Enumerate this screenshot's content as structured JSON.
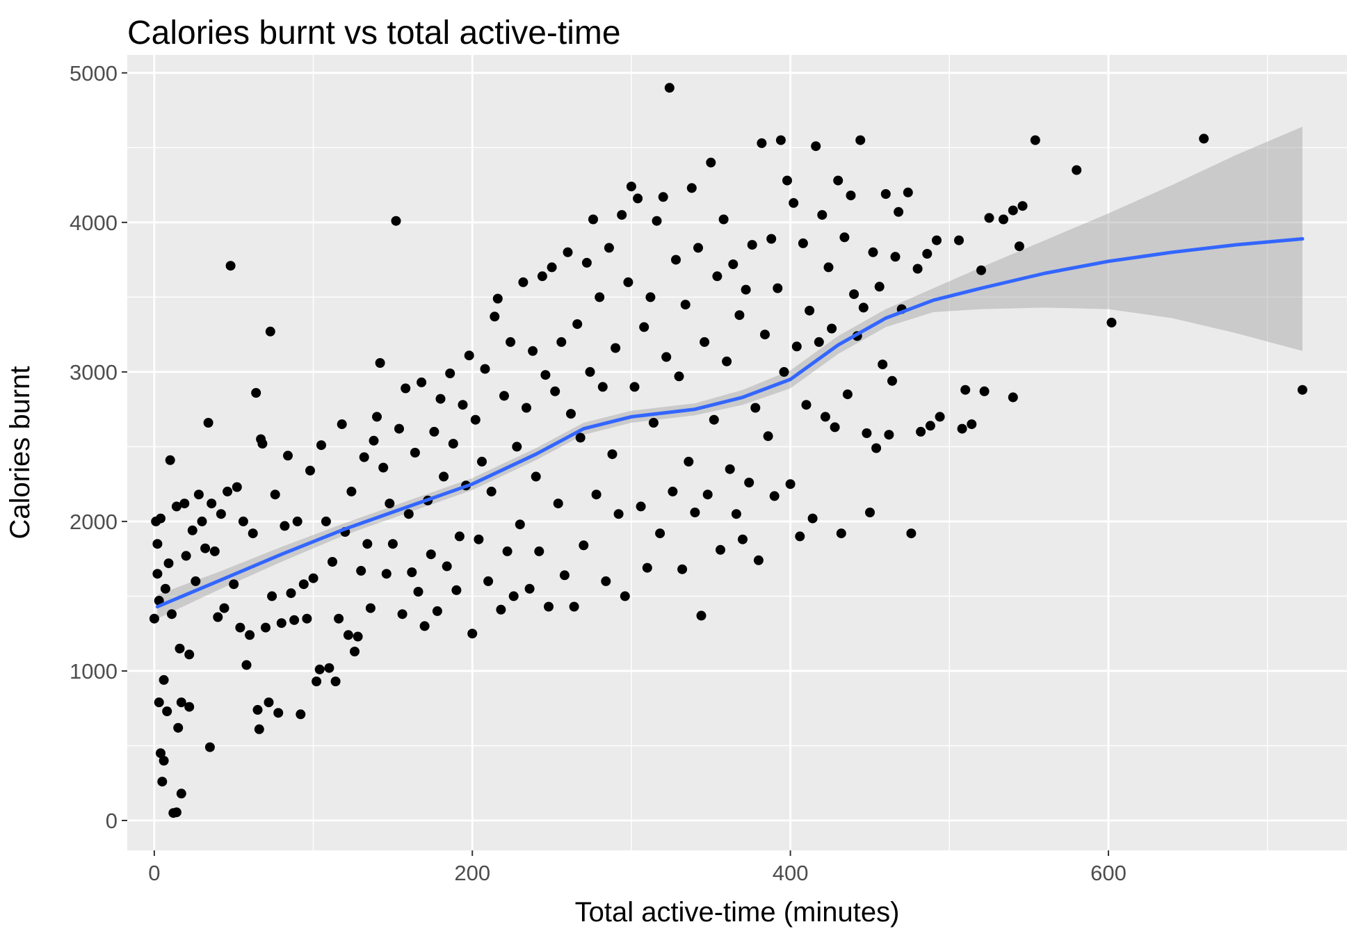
{
  "chart_data": {
    "type": "scatter",
    "title": "Calories burnt vs total active-time",
    "xlabel": "Total active-time (minutes)",
    "ylabel": "Calories burnt",
    "xlim": [
      -17,
      750
    ],
    "ylim": [
      -200,
      5120
    ],
    "x_ticks": [
      0,
      200,
      400,
      600
    ],
    "x_minor_ticks": [
      100,
      300,
      500,
      700
    ],
    "y_ticks": [
      0,
      1000,
      2000,
      3000,
      4000,
      5000
    ],
    "y_minor_ticks": [
      500,
      1500,
      2500,
      3500,
      4500
    ],
    "grid": true,
    "legend": "none",
    "colors": {
      "panel_background": "#ebebeb",
      "grid": "#ffffff",
      "points": "#000000",
      "smooth_line": "#3366ff",
      "confidence_band": "#999999"
    },
    "sample_points": [
      [
        0,
        1350
      ],
      [
        1,
        2000
      ],
      [
        2,
        1650
      ],
      [
        2,
        1850
      ],
      [
        3,
        1470
      ],
      [
        4,
        2020
      ],
      [
        3,
        790
      ],
      [
        4,
        450
      ],
      [
        5,
        260
      ],
      [
        6,
        400
      ],
      [
        6,
        940
      ],
      [
        7,
        1550
      ],
      [
        8,
        730
      ],
      [
        9,
        1720
      ],
      [
        10,
        2410
      ],
      [
        11,
        1380
      ],
      [
        12,
        50
      ],
      [
        14,
        55
      ],
      [
        14,
        2100
      ],
      [
        15,
        620
      ],
      [
        16,
        1150
      ],
      [
        17,
        790
      ],
      [
        17,
        180
      ],
      [
        19,
        2120
      ],
      [
        20,
        1770
      ],
      [
        22,
        760
      ],
      [
        22,
        1110
      ],
      [
        24,
        1940
      ],
      [
        26,
        1600
      ],
      [
        28,
        2180
      ],
      [
        30,
        2000
      ],
      [
        32,
        1820
      ],
      [
        34,
        2660
      ],
      [
        35,
        490
      ],
      [
        36,
        2120
      ],
      [
        38,
        1800
      ],
      [
        40,
        1360
      ],
      [
        42,
        2050
      ],
      [
        44,
        1420
      ],
      [
        46,
        2200
      ],
      [
        48,
        3710
      ],
      [
        50,
        1580
      ],
      [
        52,
        2230
      ],
      [
        54,
        1290
      ],
      [
        56,
        2000
      ],
      [
        58,
        1040
      ],
      [
        60,
        1240
      ],
      [
        62,
        1920
      ],
      [
        64,
        2860
      ],
      [
        65,
        740
      ],
      [
        66,
        610
      ],
      [
        67,
        2550
      ],
      [
        68,
        2520
      ],
      [
        70,
        1290
      ],
      [
        72,
        790
      ],
      [
        73,
        3270
      ],
      [
        74,
        1500
      ],
      [
        76,
        2180
      ],
      [
        78,
        720
      ],
      [
        80,
        1320
      ],
      [
        82,
        1970
      ],
      [
        84,
        2440
      ],
      [
        86,
        1520
      ],
      [
        88,
        1340
      ],
      [
        90,
        2000
      ],
      [
        92,
        710
      ],
      [
        94,
        1580
      ],
      [
        96,
        1350
      ],
      [
        98,
        2340
      ],
      [
        100,
        1620
      ],
      [
        102,
        930
      ],
      [
        104,
        1010
      ],
      [
        105,
        2510
      ],
      [
        108,
        2000
      ],
      [
        110,
        1020
      ],
      [
        112,
        1730
      ],
      [
        114,
        930
      ],
      [
        116,
        1350
      ],
      [
        118,
        2650
      ],
      [
        120,
        1930
      ],
      [
        122,
        1240
      ],
      [
        124,
        2200
      ],
      [
        126,
        1130
      ],
      [
        128,
        1230
      ],
      [
        130,
        1670
      ],
      [
        132,
        2430
      ],
      [
        134,
        1850
      ],
      [
        136,
        1420
      ],
      [
        138,
        2540
      ],
      [
        140,
        2700
      ],
      [
        142,
        3060
      ],
      [
        144,
        2360
      ],
      [
        146,
        1650
      ],
      [
        148,
        2120
      ],
      [
        150,
        1850
      ],
      [
        152,
        4010
      ],
      [
        154,
        2620
      ],
      [
        156,
        1380
      ],
      [
        158,
        2890
      ],
      [
        160,
        2050
      ],
      [
        162,
        1660
      ],
      [
        164,
        2460
      ],
      [
        166,
        1530
      ],
      [
        168,
        2930
      ],
      [
        170,
        1300
      ],
      [
        172,
        2140
      ],
      [
        174,
        1780
      ],
      [
        176,
        2600
      ],
      [
        178,
        1400
      ],
      [
        180,
        2820
      ],
      [
        182,
        2300
      ],
      [
        184,
        1700
      ],
      [
        186,
        2990
      ],
      [
        188,
        2520
      ],
      [
        190,
        1540
      ],
      [
        192,
        1900
      ],
      [
        194,
        2780
      ],
      [
        196,
        2240
      ],
      [
        198,
        3110
      ],
      [
        200,
        1250
      ],
      [
        202,
        2680
      ],
      [
        204,
        1880
      ],
      [
        206,
        2400
      ],
      [
        208,
        3020
      ],
      [
        210,
        1600
      ],
      [
        212,
        2200
      ],
      [
        214,
        3370
      ],
      [
        216,
        3490
      ],
      [
        218,
        1410
      ],
      [
        220,
        2840
      ],
      [
        222,
        1800
      ],
      [
        224,
        3200
      ],
      [
        226,
        1500
      ],
      [
        228,
        2500
      ],
      [
        230,
        1980
      ],
      [
        232,
        3600
      ],
      [
        234,
        2760
      ],
      [
        236,
        1550
      ],
      [
        238,
        3140
      ],
      [
        240,
        2300
      ],
      [
        242,
        1800
      ],
      [
        244,
        3640
      ],
      [
        246,
        2980
      ],
      [
        248,
        1430
      ],
      [
        250,
        3700
      ],
      [
        252,
        2870
      ],
      [
        254,
        2120
      ],
      [
        256,
        3200
      ],
      [
        258,
        1640
      ],
      [
        260,
        3800
      ],
      [
        262,
        2720
      ],
      [
        264,
        1430
      ],
      [
        266,
        3320
      ],
      [
        268,
        2560
      ],
      [
        270,
        1840
      ],
      [
        272,
        3730
      ],
      [
        274,
        3000
      ],
      [
        276,
        4020
      ],
      [
        278,
        2180
      ],
      [
        280,
        3500
      ],
      [
        282,
        2900
      ],
      [
        284,
        1600
      ],
      [
        286,
        3830
      ],
      [
        288,
        2450
      ],
      [
        290,
        3160
      ],
      [
        292,
        2050
      ],
      [
        294,
        4050
      ],
      [
        296,
        1500
      ],
      [
        298,
        3600
      ],
      [
        300,
        4240
      ],
      [
        302,
        2900
      ],
      [
        304,
        4160
      ],
      [
        306,
        2100
      ],
      [
        308,
        3300
      ],
      [
        310,
        1690
      ],
      [
        312,
        3500
      ],
      [
        314,
        2660
      ],
      [
        316,
        4010
      ],
      [
        318,
        1920
      ],
      [
        320,
        4170
      ],
      [
        322,
        3100
      ],
      [
        324,
        4900
      ],
      [
        326,
        2200
      ],
      [
        328,
        3750
      ],
      [
        330,
        2970
      ],
      [
        332,
        1680
      ],
      [
        334,
        3450
      ],
      [
        336,
        2400
      ],
      [
        338,
        4230
      ],
      [
        340,
        2060
      ],
      [
        342,
        3830
      ],
      [
        344,
        1370
      ],
      [
        346,
        3200
      ],
      [
        348,
        2180
      ],
      [
        350,
        4400
      ],
      [
        352,
        2680
      ],
      [
        354,
        3640
      ],
      [
        356,
        1810
      ],
      [
        358,
        4020
      ],
      [
        360,
        3070
      ],
      [
        362,
        2350
      ],
      [
        364,
        3720
      ],
      [
        366,
        2050
      ],
      [
        368,
        3380
      ],
      [
        370,
        1880
      ],
      [
        372,
        3550
      ],
      [
        374,
        2260
      ],
      [
        376,
        3850
      ],
      [
        378,
        2760
      ],
      [
        380,
        1740
      ],
      [
        382,
        4530
      ],
      [
        384,
        3250
      ],
      [
        386,
        2570
      ],
      [
        388,
        3890
      ],
      [
        390,
        2170
      ],
      [
        392,
        3560
      ],
      [
        394,
        4550
      ],
      [
        396,
        3000
      ],
      [
        398,
        4280
      ],
      [
        400,
        2250
      ],
      [
        402,
        4130
      ],
      [
        404,
        3170
      ],
      [
        406,
        1900
      ],
      [
        408,
        3860
      ],
      [
        410,
        2780
      ],
      [
        412,
        3410
      ],
      [
        414,
        2020
      ],
      [
        416,
        4510
      ],
      [
        418,
        3200
      ],
      [
        420,
        4050
      ],
      [
        422,
        2700
      ],
      [
        424,
        3700
      ],
      [
        426,
        3290
      ],
      [
        428,
        2630
      ],
      [
        430,
        4280
      ],
      [
        432,
        1920
      ],
      [
        434,
        3900
      ],
      [
        436,
        2850
      ],
      [
        438,
        4180
      ],
      [
        440,
        3520
      ],
      [
        442,
        3240
      ],
      [
        444,
        4550
      ],
      [
        446,
        3430
      ],
      [
        448,
        2590
      ],
      [
        450,
        2060
      ],
      [
        452,
        3800
      ],
      [
        454,
        2490
      ],
      [
        456,
        3570
      ],
      [
        458,
        3050
      ],
      [
        460,
        4190
      ],
      [
        462,
        2580
      ],
      [
        464,
        2940
      ],
      [
        466,
        3770
      ],
      [
        468,
        4070
      ],
      [
        470,
        3420
      ],
      [
        474,
        4200
      ],
      [
        476,
        1920
      ],
      [
        480,
        3690
      ],
      [
        482,
        2600
      ],
      [
        486,
        3790
      ],
      [
        488,
        2640
      ],
      [
        492,
        3880
      ],
      [
        494,
        2700
      ],
      [
        506,
        3880
      ],
      [
        508,
        2620
      ],
      [
        510,
        2880
      ],
      [
        514,
        2650
      ],
      [
        520,
        3680
      ],
      [
        522,
        2870
      ],
      [
        525,
        4030
      ],
      [
        534,
        4020
      ],
      [
        540,
        4080
      ],
      [
        540,
        2830
      ],
      [
        544,
        3840
      ],
      [
        546,
        4110
      ],
      [
        554,
        4550
      ],
      [
        580,
        4350
      ],
      [
        602,
        3330
      ],
      [
        660,
        4560
      ],
      [
        722,
        2880
      ]
    ],
    "smooth_line": [
      [
        2,
        1430
      ],
      [
        40,
        1600
      ],
      [
        80,
        1780
      ],
      [
        120,
        1950
      ],
      [
        160,
        2100
      ],
      [
        200,
        2250
      ],
      [
        240,
        2450
      ],
      [
        270,
        2620
      ],
      [
        300,
        2700
      ],
      [
        340,
        2750
      ],
      [
        370,
        2830
      ],
      [
        400,
        2950
      ],
      [
        430,
        3180
      ],
      [
        460,
        3360
      ],
      [
        490,
        3480
      ],
      [
        520,
        3560
      ],
      [
        560,
        3660
      ],
      [
        600,
        3740
      ],
      [
        640,
        3800
      ],
      [
        680,
        3850
      ],
      [
        722,
        3890
      ]
    ],
    "smooth_band_upper": [
      [
        2,
        1510
      ],
      [
        40,
        1660
      ],
      [
        80,
        1830
      ],
      [
        120,
        1990
      ],
      [
        160,
        2140
      ],
      [
        200,
        2290
      ],
      [
        240,
        2490
      ],
      [
        270,
        2660
      ],
      [
        300,
        2740
      ],
      [
        340,
        2790
      ],
      [
        370,
        2880
      ],
      [
        400,
        3010
      ],
      [
        430,
        3240
      ],
      [
        460,
        3420
      ],
      [
        490,
        3560
      ],
      [
        520,
        3700
      ],
      [
        560,
        3880
      ],
      [
        600,
        4060
      ],
      [
        640,
        4250
      ],
      [
        680,
        4450
      ],
      [
        722,
        4640
      ]
    ],
    "smooth_band_lower": [
      [
        2,
        1350
      ],
      [
        40,
        1540
      ],
      [
        80,
        1730
      ],
      [
        120,
        1910
      ],
      [
        160,
        2060
      ],
      [
        200,
        2210
      ],
      [
        240,
        2410
      ],
      [
        270,
        2580
      ],
      [
        300,
        2660
      ],
      [
        340,
        2710
      ],
      [
        370,
        2780
      ],
      [
        400,
        2890
      ],
      [
        430,
        3120
      ],
      [
        460,
        3300
      ],
      [
        490,
        3400
      ],
      [
        520,
        3420
      ],
      [
        560,
        3430
      ],
      [
        600,
        3420
      ],
      [
        640,
        3360
      ],
      [
        680,
        3260
      ],
      [
        722,
        3140
      ]
    ]
  }
}
